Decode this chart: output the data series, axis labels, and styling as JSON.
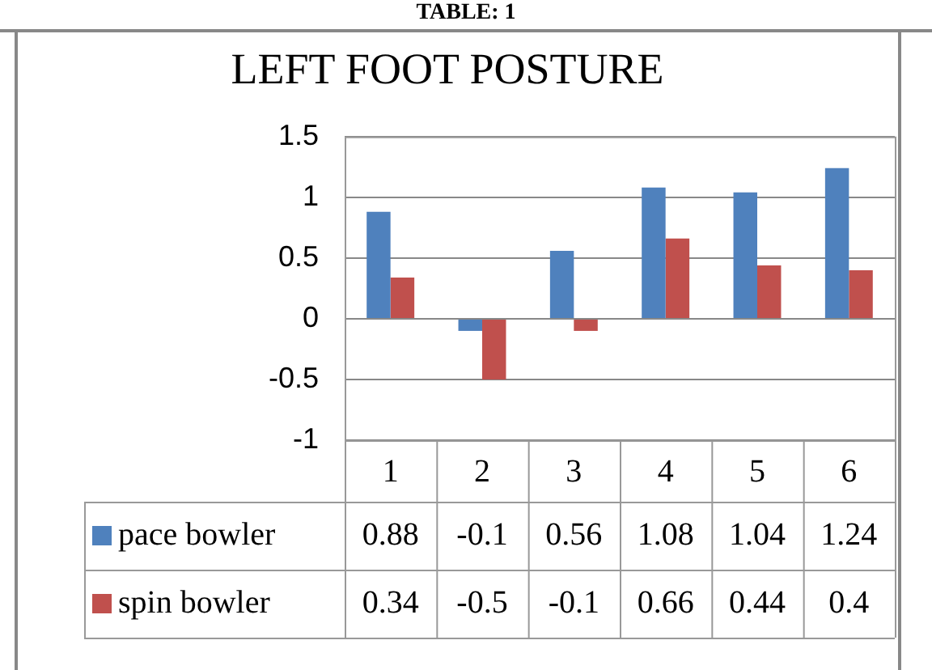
{
  "chart_data": {
    "type": "bar",
    "title": "LEFT FOOT POSTURE",
    "annotations": [
      "TABLE: 1"
    ],
    "categories": [
      "1",
      "2",
      "3",
      "4",
      "5",
      "6"
    ],
    "series": [
      {
        "name": "pace bowler",
        "color": "#4f81bd",
        "values": [
          0.88,
          -0.1,
          0.56,
          1.08,
          1.04,
          1.24
        ]
      },
      {
        "name": "spin bowler",
        "color": "#c0504d",
        "values": [
          0.34,
          -0.5,
          -0.1,
          0.66,
          0.44,
          0.4
        ]
      }
    ],
    "ylim": [
      -1,
      1.5
    ],
    "yticks": [
      -1,
      -0.5,
      0,
      0.5,
      1,
      1.5
    ],
    "grid": "y",
    "legend": "bottom",
    "data_labels": true
  }
}
